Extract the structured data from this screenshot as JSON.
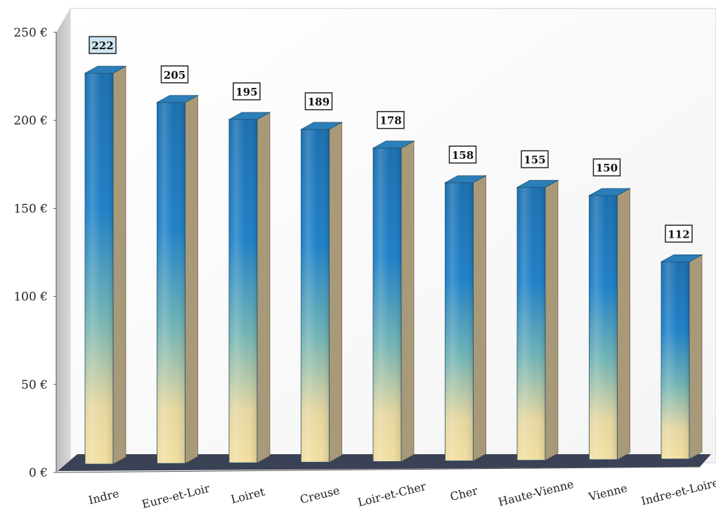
{
  "chart_data": {
    "type": "bar",
    "title": "",
    "xlabel": "",
    "ylabel": "",
    "categories": [
      "Indre",
      "Eure-et-Loir",
      "Loiret",
      "Creuse",
      "Loir-et-Cher",
      "Cher",
      "Haute-Vienne",
      "Vienne",
      "Indre-et-Loire"
    ],
    "values": [
      222,
      205,
      195,
      189,
      178,
      158,
      155,
      150,
      112
    ],
    "data_labels": [
      "222",
      "205",
      "195",
      "189",
      "178",
      "158",
      "155",
      "150",
      "112"
    ],
    "ylim": [
      0,
      250
    ],
    "yticks": [
      0,
      50,
      100,
      150,
      200,
      250
    ],
    "ytick_labels": [
      "0 €",
      "50 €",
      "100 €",
      "150 €",
      "200 €",
      "250 €"
    ],
    "grid": false,
    "legend": "none",
    "three_d": true,
    "colors": {
      "bar_top": "#1a6fb0",
      "bar_mid": "#1e80c8",
      "bar_low": "#6fb3b5",
      "bar_bottom": "#f2dfa0",
      "bar_side": "#a89a78",
      "bar_cap": "#2a7fb8",
      "floor": "#3b4256",
      "wall": "#e8e8e8",
      "wall_side": "#c9c9c9",
      "first_label_fill": "#cfe6f2"
    }
  }
}
